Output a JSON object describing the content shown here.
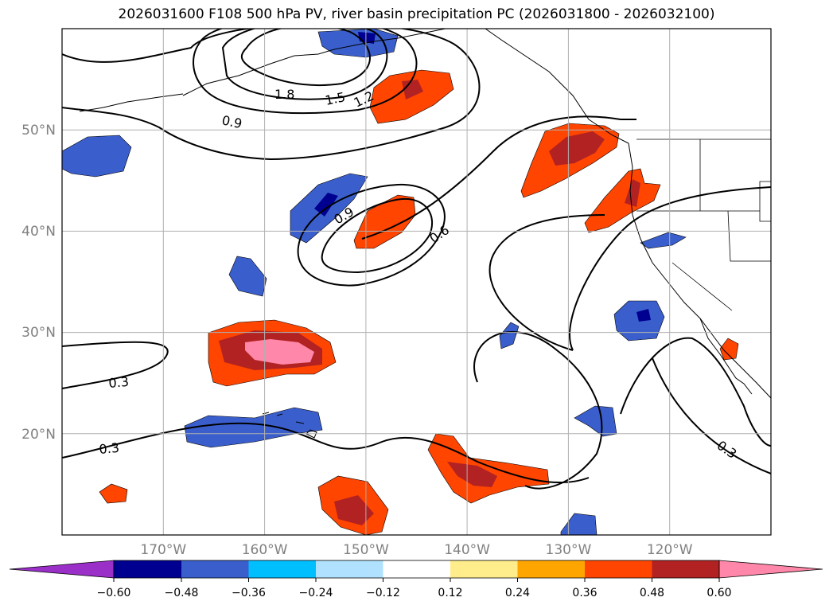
{
  "title": "2026031600 F108 500 hPa PV, river basin precipitation PC (2026031800 - 2026032100)",
  "map": {
    "lat_ticks": [
      {
        "value": 50,
        "label": "50°N"
      },
      {
        "value": 40,
        "label": "40°N"
      },
      {
        "value": 30,
        "label": "30°N"
      },
      {
        "value": 20,
        "label": "20°N"
      }
    ],
    "lon_ticks": [
      {
        "value": -170,
        "label": "170°W"
      },
      {
        "value": -160,
        "label": "160°W"
      },
      {
        "value": -150,
        "label": "150°W"
      },
      {
        "value": -140,
        "label": "140°W"
      },
      {
        "value": -130,
        "label": "130°W"
      },
      {
        "value": -120,
        "label": "120°W"
      }
    ],
    "extent": {
      "lon_min": -180,
      "lon_max": -110,
      "lat_min": 10,
      "lat_max": 60
    },
    "contour_labels": [
      "1.8",
      "1.5",
      "1.2",
      "0.9",
      "0.9",
      "0.6",
      "0.3",
      "0.3",
      "0.3"
    ]
  },
  "colorbar": {
    "ticks": [
      "−0.60",
      "−0.48",
      "−0.36",
      "−0.24",
      "−0.12",
      "0.12",
      "0.24",
      "0.36",
      "0.48",
      "0.60"
    ],
    "colors": [
      "#9b30c8",
      "#000090",
      "#3a5fcd",
      "#00bfff",
      "#b0e2ff",
      "#ffffff",
      "#ffec8b",
      "#ffa500",
      "#ff4500",
      "#b22222",
      "#ff88aa",
      "#ff88aa"
    ]
  }
}
